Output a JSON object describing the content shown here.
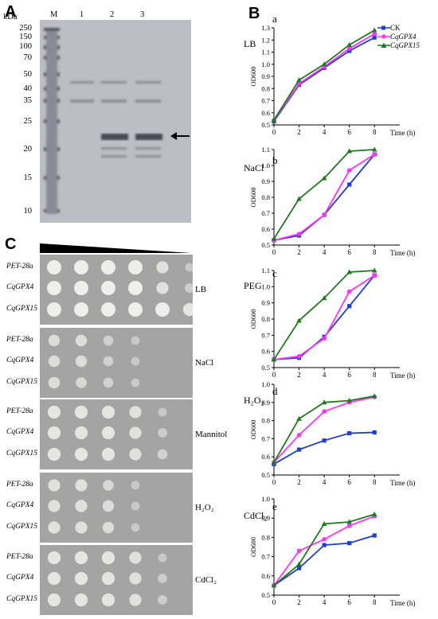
{
  "panel_a": {
    "letter": "A",
    "unit": "kDa",
    "lanes": [
      "M",
      "1",
      "2",
      "3"
    ],
    "markers": [
      "250",
      "150",
      "100",
      "70",
      "50",
      "40",
      "35",
      "25",
      "20",
      "15",
      "10"
    ],
    "arrow_icon": "left-arrow-icon"
  },
  "panel_b": {
    "letter": "B",
    "legend": [
      "CK",
      "CqGPX4",
      "CqGPX15"
    ],
    "colors": {
      "CK": "#1f3fcf",
      "CqGPX4": "#ff33ff",
      "CqGPX15": "#1f7a1f"
    },
    "xlabel": "Time (h)",
    "ylabel": "OD600"
  },
  "panel_c": {
    "letter": "C",
    "strains": [
      "PET-28a",
      "CqGPX4",
      "CqGPX15"
    ],
    "conditions": [
      "LB",
      "NaCl",
      "Mannitol",
      "H₂O₂",
      "CdCl₂"
    ]
  },
  "chart_data": [
    {
      "type": "line",
      "subpanel": "a",
      "condition": "LB",
      "x": [
        0,
        2,
        4,
        6,
        8
      ],
      "ylim": [
        0.5,
        1.3
      ],
      "yticks": [
        "0.5",
        "0.6",
        "0.7",
        "0.8",
        "0.9",
        "1.0",
        "1.1",
        "1.2",
        "1.3"
      ],
      "series": [
        {
          "name": "CK",
          "values": [
            0.53,
            0.83,
            0.97,
            1.11,
            1.22
          ]
        },
        {
          "name": "CqGPX4",
          "values": [
            0.54,
            0.84,
            0.98,
            1.13,
            1.25
          ]
        },
        {
          "name": "CqGPX15",
          "values": [
            0.54,
            0.87,
            1.0,
            1.16,
            1.28
          ]
        }
      ]
    },
    {
      "type": "line",
      "subpanel": "b",
      "condition": "NaCl",
      "x": [
        0,
        2,
        4,
        6,
        8
      ],
      "ylim": [
        0.5,
        1.1
      ],
      "yticks": [
        "0.5",
        "0.6",
        "0.7",
        "0.8",
        "0.9",
        "1.0",
        "1.1"
      ],
      "series": [
        {
          "name": "CK",
          "values": [
            0.53,
            0.56,
            0.69,
            0.88,
            1.07
          ]
        },
        {
          "name": "CqGPX4",
          "values": [
            0.53,
            0.57,
            0.69,
            0.97,
            1.07
          ]
        },
        {
          "name": "CqGPX15",
          "values": [
            0.54,
            0.79,
            0.92,
            1.09,
            1.1
          ]
        }
      ]
    },
    {
      "type": "line",
      "subpanel": "c",
      "condition": "PEG",
      "x": [
        0,
        2,
        4,
        6,
        8
      ],
      "ylim": [
        0.5,
        1.1
      ],
      "yticks": [
        "0.5",
        "0.6",
        "0.7",
        "0.8",
        "0.9",
        "1.0",
        "1.1"
      ],
      "series": [
        {
          "name": "CK",
          "values": [
            0.55,
            0.56,
            0.69,
            0.88,
            1.07
          ]
        },
        {
          "name": "CqGPX4",
          "values": [
            0.55,
            0.57,
            0.68,
            0.97,
            1.07
          ]
        },
        {
          "name": "CqGPX15",
          "values": [
            0.55,
            0.79,
            0.93,
            1.09,
            1.1
          ]
        }
      ]
    },
    {
      "type": "line",
      "subpanel": "d",
      "condition": "H₂O₂",
      "x": [
        0,
        2,
        4,
        6,
        8
      ],
      "ylim": [
        0.5,
        1.0
      ],
      "yticks": [
        "0.5",
        "0.6",
        "0.7",
        "0.8",
        "0.9",
        "1.0"
      ],
      "series": [
        {
          "name": "CK",
          "values": [
            0.56,
            0.64,
            0.69,
            0.73,
            0.735
          ]
        },
        {
          "name": "CqGPX4",
          "values": [
            0.57,
            0.72,
            0.85,
            0.9,
            0.93
          ]
        },
        {
          "name": "CqGPX15",
          "values": [
            0.57,
            0.81,
            0.9,
            0.91,
            0.935
          ]
        }
      ]
    },
    {
      "type": "line",
      "subpanel": "e",
      "condition": "CdCl₂",
      "x": [
        0,
        2,
        4,
        6,
        8
      ],
      "ylim": [
        0.5,
        1.0
      ],
      "yticks": [
        "0.5",
        "0.6",
        "0.7",
        "0.8",
        "0.9",
        "1.0"
      ],
      "series": [
        {
          "name": "CK",
          "values": [
            0.55,
            0.64,
            0.76,
            0.77,
            0.81
          ]
        },
        {
          "name": "CqGPX4",
          "values": [
            0.55,
            0.73,
            0.79,
            0.86,
            0.91
          ]
        },
        {
          "name": "CqGPX15",
          "values": [
            0.55,
            0.66,
            0.87,
            0.88,
            0.92
          ]
        }
      ]
    }
  ]
}
